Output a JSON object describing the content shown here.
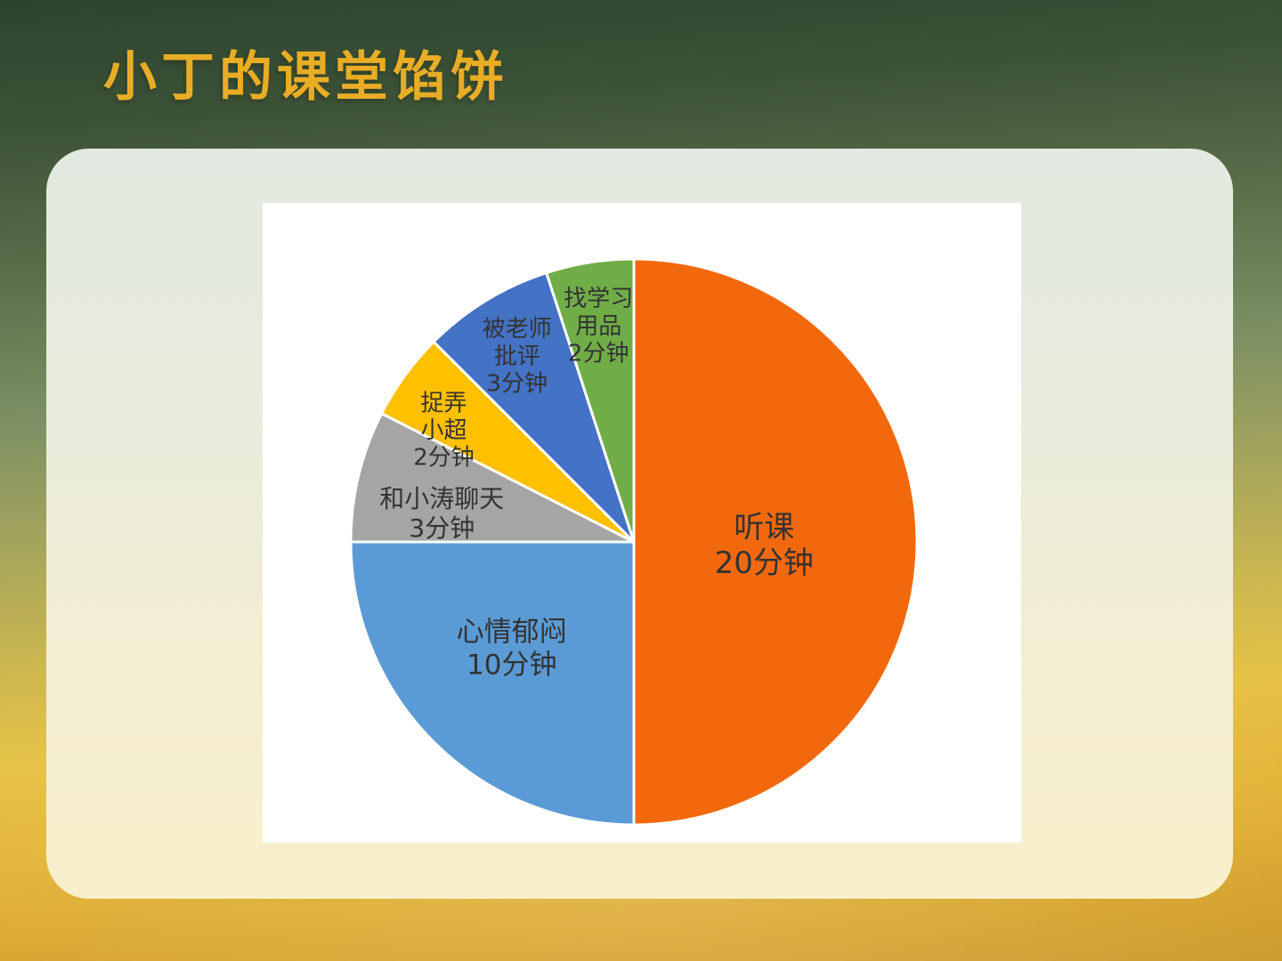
{
  "slide": {
    "title": "小丁的课堂馅饼"
  },
  "colors": {
    "title_gold": "#E9AD25",
    "background_top_green": "#2c432e",
    "background_bottom_gold": "#d4a02c",
    "panel_top": "#e2e9e0",
    "panel_bottom": "#f9f0cb",
    "chart_background": "#ffffff",
    "slice_border": "#ffffff",
    "label_text": "#333333"
  },
  "chart_data": {
    "type": "pie",
    "title": "小丁的课堂馅饼",
    "unit": "分钟",
    "total_minutes": 40,
    "start_angle_deg": 0,
    "direction": "clockwise",
    "legend": "none",
    "slices": [
      {
        "label": "听课",
        "value": 20,
        "color": "#F2690D",
        "lines": [
          "听课",
          "20分钟"
        ]
      },
      {
        "label": "心情郁闷",
        "value": 10,
        "color": "#5B9BD5",
        "lines": [
          "心情郁闷",
          "10分钟"
        ]
      },
      {
        "label": "和小涛聊天",
        "value": 3,
        "color": "#A5A5A5",
        "lines": [
          "和小涛聊天",
          "3分钟"
        ]
      },
      {
        "label": "捉弄小超",
        "value": 2,
        "color": "#FFC000",
        "lines": [
          "捉弄",
          "小超",
          "2分钟"
        ]
      },
      {
        "label": "被老师批评",
        "value": 3,
        "color": "#4472C4",
        "lines": [
          "被老师",
          "批评",
          "3分钟"
        ]
      },
      {
        "label": "找学习用品",
        "value": 2,
        "color": "#70AD47",
        "lines": [
          "找学习",
          "用品",
          "2分钟"
        ]
      }
    ]
  }
}
